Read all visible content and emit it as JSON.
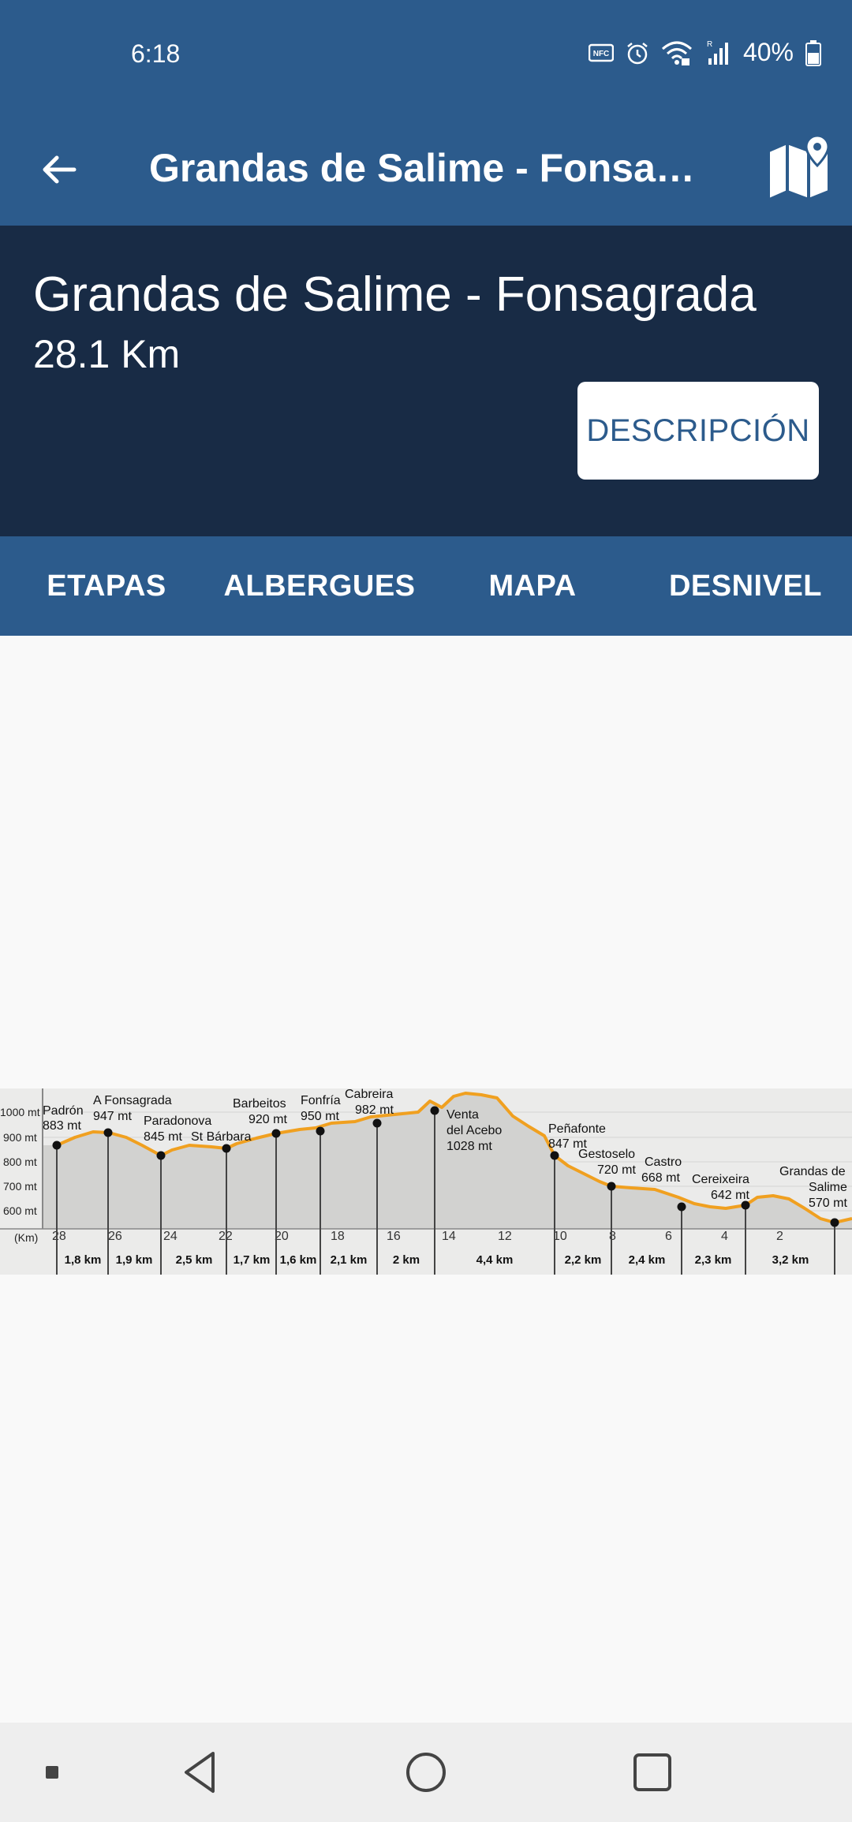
{
  "status_bar": {
    "time": "6:18",
    "battery_pct": "40%",
    "icons": [
      "nfc-icon",
      "alarm-icon",
      "wifi-icon",
      "signal-icon",
      "battery-icon"
    ]
  },
  "app_bar": {
    "title": "Grandas de Salime - Fonsagr…",
    "back_icon": "arrow-back-icon",
    "map_icon": "map-pin-icon"
  },
  "header": {
    "route_title": "Grandas de Salime - Fonsagrada",
    "distance": "28.1 Km",
    "description_button": "DESCRIPCIÓN"
  },
  "tabs": [
    {
      "label": "ETAPAS"
    },
    {
      "label": "ALBERGUES"
    },
    {
      "label": "MAPA"
    },
    {
      "label": "DESNIVEL"
    }
  ],
  "profile": {
    "y_axis_labels": [
      "1000 mt",
      "900 mt",
      "800 mt",
      "700 mt",
      "600 mt"
    ],
    "km_unit_label": "(Km)",
    "km_ticks": [
      "28",
      "26",
      "24",
      "22",
      "20",
      "18",
      "16",
      "14",
      "12",
      "10",
      "8",
      "6",
      "4",
      "2"
    ],
    "places": [
      {
        "name": "Padrón",
        "alt": "883 mt"
      },
      {
        "name": "A Fonsagrada",
        "alt": "947 mt"
      },
      {
        "name": "Paradonova",
        "alt": "845 mt"
      },
      {
        "name": "St Bárbara",
        "alt": ""
      },
      {
        "name": "Barbeitos",
        "alt": "920 mt"
      },
      {
        "name": "Fonfría",
        "alt": "950 mt"
      },
      {
        "name": "Cabreira",
        "alt": "982 mt"
      },
      {
        "name": "Venta",
        "name2": "del Acebo",
        "alt": "1028 mt"
      },
      {
        "name": "Peñafonte",
        "alt": "847 mt"
      },
      {
        "name": "Gestoselo",
        "alt": "720 mt"
      },
      {
        "name": "Castro",
        "alt": "668 mt"
      },
      {
        "name": "Cereixeira",
        "alt": "642 mt"
      },
      {
        "name": "Grandas de",
        "name2": "Salime",
        "alt": "570 mt"
      }
    ],
    "segments": [
      "1,8 km",
      "1,9 km",
      "2,5 km",
      "1,7 km",
      "1,6 km",
      "2,1 km",
      "2 km",
      "4,4 km",
      "2,2 km",
      "2,4 km",
      "2,3 km",
      "3,2 km"
    ],
    "colors": {
      "line": "#f0a020",
      "fill": "#d2d2d0",
      "bg": "#ebebea"
    }
  },
  "nav_bar": {
    "buttons": [
      "menu-dot-icon",
      "back-triangle-icon",
      "home-circle-icon",
      "recents-square-icon"
    ]
  }
}
